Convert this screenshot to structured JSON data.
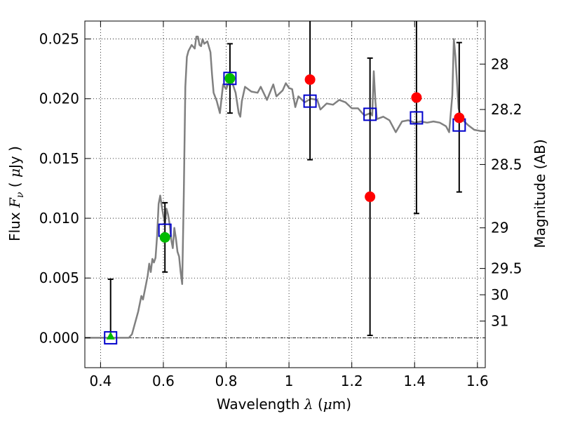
{
  "chart_data": {
    "type": "scatter",
    "xlabel": "Wavelength  λ (μm)",
    "ylabel": "Flux  F_ν  ( μJy )",
    "y2label": "Magnitude (AB)",
    "xlim": [
      0.35,
      1.625
    ],
    "ylim": [
      -0.0025,
      0.0265
    ],
    "x_ticks": [
      {
        "value": 0.4,
        "label": "0.4"
      },
      {
        "value": 0.6,
        "label": "0.6"
      },
      {
        "value": 0.8,
        "label": "0.8"
      },
      {
        "value": 1.0,
        "label": "1"
      },
      {
        "value": 1.2,
        "label": "1.2"
      },
      {
        "value": 1.4,
        "label": "1.4"
      },
      {
        "value": 1.6,
        "label": "1.6"
      }
    ],
    "y_ticks": [
      {
        "value": 0.0,
        "label": "0.000"
      },
      {
        "value": 0.005,
        "label": "0.005"
      },
      {
        "value": 0.01,
        "label": "0.010"
      },
      {
        "value": 0.015,
        "label": "0.015"
      },
      {
        "value": 0.02,
        "label": "0.020"
      },
      {
        "value": 0.025,
        "label": "0.025"
      }
    ],
    "y2_ticks": [
      {
        "flux": 0.0229,
        "label": "28"
      },
      {
        "flux": 0.0191,
        "label": "28.2"
      },
      {
        "flux": 0.0145,
        "label": "28.5"
      },
      {
        "flux": 0.0092,
        "label": "29"
      },
      {
        "flux": 0.0058,
        "label": "29.5"
      },
      {
        "flux": 0.0036,
        "label": "30"
      },
      {
        "flux": 0.0014,
        "label": "31"
      }
    ],
    "grid": true,
    "zero_line": 0.0,
    "series": [
      {
        "kind": "line",
        "color": "#808080",
        "points": [
          [
            0.35,
            0.0
          ],
          [
            0.49,
            0.0
          ],
          [
            0.5,
            0.0003
          ],
          [
            0.52,
            0.0022
          ],
          [
            0.53,
            0.0035
          ],
          [
            0.535,
            0.0032
          ],
          [
            0.545,
            0.0045
          ],
          [
            0.55,
            0.0052
          ],
          [
            0.555,
            0.0062
          ],
          [
            0.56,
            0.0055
          ],
          [
            0.565,
            0.0066
          ],
          [
            0.57,
            0.0063
          ],
          [
            0.575,
            0.0067
          ],
          [
            0.58,
            0.0085
          ],
          [
            0.585,
            0.0112
          ],
          [
            0.59,
            0.0119
          ],
          [
            0.595,
            0.011
          ],
          [
            0.6,
            0.0102
          ],
          [
            0.605,
            0.0095
          ],
          [
            0.61,
            0.0108
          ],
          [
            0.615,
            0.0103
          ],
          [
            0.62,
            0.0095
          ],
          [
            0.625,
            0.0082
          ],
          [
            0.63,
            0.0075
          ],
          [
            0.635,
            0.0092
          ],
          [
            0.64,
            0.0083
          ],
          [
            0.645,
            0.0072
          ],
          [
            0.65,
            0.0068
          ],
          [
            0.655,
            0.0055
          ],
          [
            0.66,
            0.0045
          ],
          [
            0.665,
            0.012
          ],
          [
            0.67,
            0.021
          ],
          [
            0.675,
            0.0235
          ],
          [
            0.68,
            0.024
          ],
          [
            0.69,
            0.0245
          ],
          [
            0.7,
            0.0242
          ],
          [
            0.705,
            0.0252
          ],
          [
            0.71,
            0.0252
          ],
          [
            0.715,
            0.0245
          ],
          [
            0.72,
            0.0244
          ],
          [
            0.725,
            0.025
          ],
          [
            0.73,
            0.0246
          ],
          [
            0.74,
            0.0248
          ],
          [
            0.75,
            0.0239
          ],
          [
            0.755,
            0.022
          ],
          [
            0.76,
            0.0205
          ],
          [
            0.77,
            0.0198
          ],
          [
            0.78,
            0.0188
          ],
          [
            0.79,
            0.0212
          ],
          [
            0.8,
            0.0208
          ],
          [
            0.81,
            0.0215
          ],
          [
            0.82,
            0.0213
          ],
          [
            0.83,
            0.0205
          ],
          [
            0.84,
            0.0188
          ],
          [
            0.845,
            0.0185
          ],
          [
            0.85,
            0.0198
          ],
          [
            0.86,
            0.021
          ],
          [
            0.88,
            0.0206
          ],
          [
            0.9,
            0.0205
          ],
          [
            0.91,
            0.021
          ],
          [
            0.93,
            0.0199
          ],
          [
            0.95,
            0.0212
          ],
          [
            0.96,
            0.0202
          ],
          [
            0.98,
            0.0207
          ],
          [
            0.99,
            0.0213
          ],
          [
            1.0,
            0.0209
          ],
          [
            1.01,
            0.0208
          ],
          [
            1.02,
            0.0193
          ],
          [
            1.03,
            0.0202
          ],
          [
            1.05,
            0.0197
          ],
          [
            1.07,
            0.02
          ],
          [
            1.09,
            0.0199
          ],
          [
            1.1,
            0.0191
          ],
          [
            1.12,
            0.0196
          ],
          [
            1.14,
            0.0195
          ],
          [
            1.16,
            0.0199
          ],
          [
            1.18,
            0.0197
          ],
          [
            1.2,
            0.0192
          ],
          [
            1.22,
            0.0192
          ],
          [
            1.24,
            0.0186
          ],
          [
            1.26,
            0.0188
          ],
          [
            1.265,
            0.0186
          ],
          [
            1.27,
            0.0223
          ],
          [
            1.275,
            0.0198
          ],
          [
            1.28,
            0.0183
          ],
          [
            1.3,
            0.0185
          ],
          [
            1.32,
            0.0182
          ],
          [
            1.34,
            0.0172
          ],
          [
            1.36,
            0.0181
          ],
          [
            1.38,
            0.0182
          ],
          [
            1.4,
            0.018
          ],
          [
            1.42,
            0.0181
          ],
          [
            1.44,
            0.018
          ],
          [
            1.46,
            0.0181
          ],
          [
            1.48,
            0.018
          ],
          [
            1.5,
            0.0177
          ],
          [
            1.51,
            0.0172
          ],
          [
            1.52,
            0.0203
          ],
          [
            1.525,
            0.025
          ],
          [
            1.53,
            0.0235
          ],
          [
            1.54,
            0.0192
          ],
          [
            1.55,
            0.0183
          ],
          [
            1.57,
            0.0178
          ],
          [
            1.59,
            0.0174
          ],
          [
            1.61,
            0.0173
          ],
          [
            1.625,
            0.0173
          ]
        ]
      },
      {
        "kind": "squares",
        "color": "#0000cc",
        "points": [
          [
            0.432,
            0.0
          ],
          [
            0.605,
            0.009
          ],
          [
            0.812,
            0.0217
          ],
          [
            1.067,
            0.0198
          ],
          [
            1.258,
            0.0187
          ],
          [
            1.406,
            0.0184
          ],
          [
            1.542,
            0.0178
          ]
        ]
      },
      {
        "kind": "errorbars",
        "color": "#000000",
        "points": [
          {
            "x": 0.432,
            "lo": 0.0,
            "hi": 0.0049
          },
          {
            "x": 0.605,
            "lo": 0.0055,
            "hi": 0.0113
          },
          {
            "x": 0.812,
            "lo": 0.0188,
            "hi": 0.0246
          },
          {
            "x": 1.067,
            "lo": 0.0149,
            "hi": 0.0265
          },
          {
            "x": 1.258,
            "lo": 0.0002,
            "hi": 0.0234
          },
          {
            "x": 1.406,
            "lo": 0.0104,
            "hi": 0.0265
          },
          {
            "x": 1.542,
            "lo": 0.0122,
            "hi": 0.0247
          }
        ]
      },
      {
        "kind": "green-circles",
        "color": "#00bb00",
        "points": [
          [
            0.605,
            0.0084
          ],
          [
            0.812,
            0.0217
          ]
        ]
      },
      {
        "kind": "green-triangle",
        "color": "#00bb00",
        "points": [
          [
            0.432,
            0.0001
          ]
        ]
      },
      {
        "kind": "red-circles",
        "color": "#ff0000",
        "points": [
          [
            1.067,
            0.0216
          ],
          [
            1.258,
            0.0118
          ],
          [
            1.406,
            0.0201
          ],
          [
            1.542,
            0.0184
          ]
        ]
      }
    ]
  }
}
